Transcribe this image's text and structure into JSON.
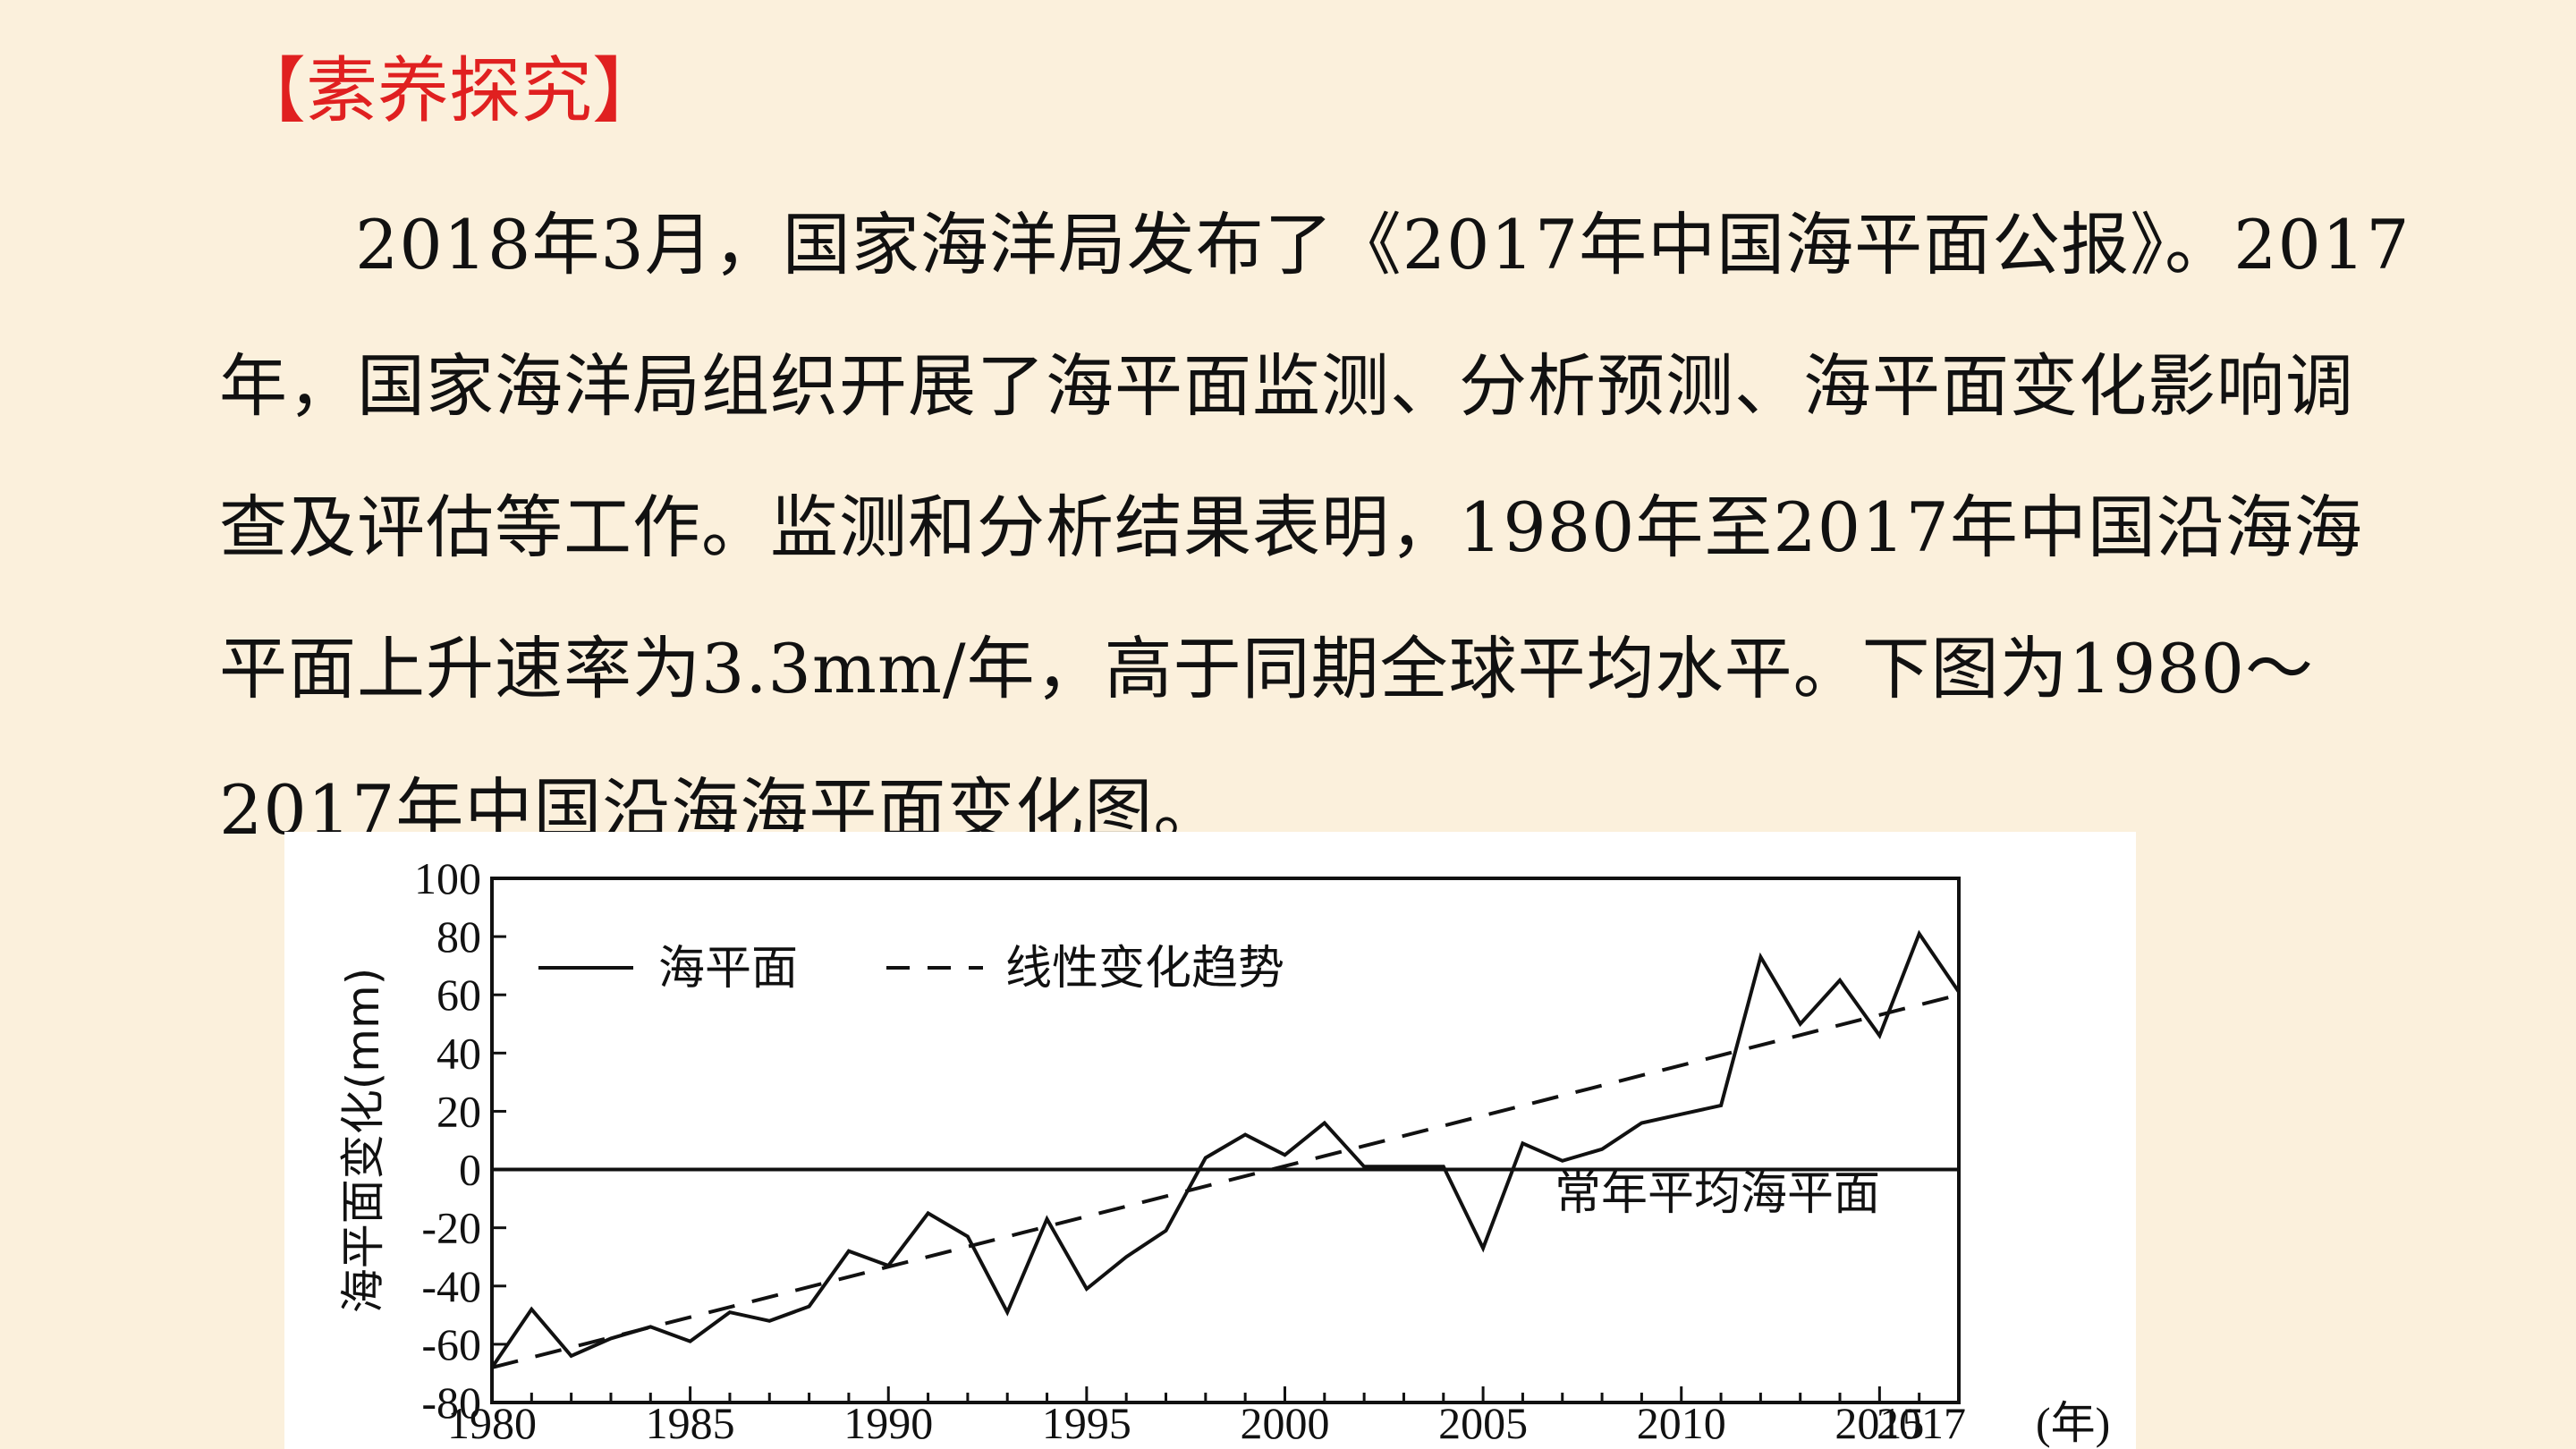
{
  "page": {
    "heading": "【素养探究】",
    "paragraph": "2018年3月，国家海洋局发布了《2017年中国海平面公报》。2017年，国家海洋局组织开展了海平面监测、分析预测、海平面变化影响调查及评估等工作。监测和分析结果表明，1980年至2017年中国沿海海平面上升速率为3.3mm/年，高于同期全球平均水平。下图为1980～2017年中国沿海海平面变化图。"
  },
  "colors": {
    "background": "#fbf0dc",
    "heading": "#e02020",
    "text": "#111111",
    "chart_panel": "#ffffff"
  },
  "chart_data": {
    "type": "line",
    "title": "",
    "xlabel": "",
    "x_unit_label": "(年)",
    "ylabel": "海平面变化(mm)",
    "xlim": [
      1980,
      2017
    ],
    "ylim": [
      -80,
      100
    ],
    "x_ticks": [
      1980,
      1985,
      1990,
      1995,
      2000,
      2005,
      2010,
      2015,
      2017
    ],
    "x_tick_labels": [
      "1980",
      "1985",
      "1990",
      "1995",
      "2000",
      "2005",
      "2010",
      "2015",
      "2017"
    ],
    "y_ticks": [
      -80,
      -60,
      -40,
      -20,
      0,
      20,
      40,
      60,
      80,
      100
    ],
    "y_tick_labels": [
      "-80",
      "-60",
      "-40",
      "-20",
      "0",
      "20",
      "40",
      "60",
      "80",
      "100"
    ],
    "grid": false,
    "legend_position": "top-left",
    "series": [
      {
        "name": "海平面",
        "style": "solid",
        "x": [
          1980,
          1981,
          1982,
          1983,
          1984,
          1985,
          1986,
          1987,
          1988,
          1989,
          1990,
          1991,
          1992,
          1993,
          1994,
          1995,
          1996,
          1997,
          1998,
          1999,
          2000,
          2001,
          2002,
          2004,
          2005,
          2006,
          2007,
          2008,
          2009,
          2010,
          2011,
          2012,
          2013,
          2014,
          2015,
          2016,
          2017
        ],
        "y": [
          -68,
          -48,
          -64,
          -58,
          -54,
          -59,
          -49,
          -52,
          -47,
          -28,
          -33,
          -15,
          -23,
          -49,
          -17,
          -41,
          -30,
          -21,
          4,
          12,
          5,
          16,
          1,
          1,
          -27,
          9,
          3,
          7,
          16,
          19,
          22,
          73,
          50,
          65,
          46,
          81,
          61
        ]
      },
      {
        "name": "线性变化趋势",
        "style": "dashed",
        "x": [
          1980,
          2017
        ],
        "y": [
          -68,
          60
        ]
      }
    ],
    "reference_line": {
      "y": 0,
      "label": "常年平均海平面"
    }
  }
}
